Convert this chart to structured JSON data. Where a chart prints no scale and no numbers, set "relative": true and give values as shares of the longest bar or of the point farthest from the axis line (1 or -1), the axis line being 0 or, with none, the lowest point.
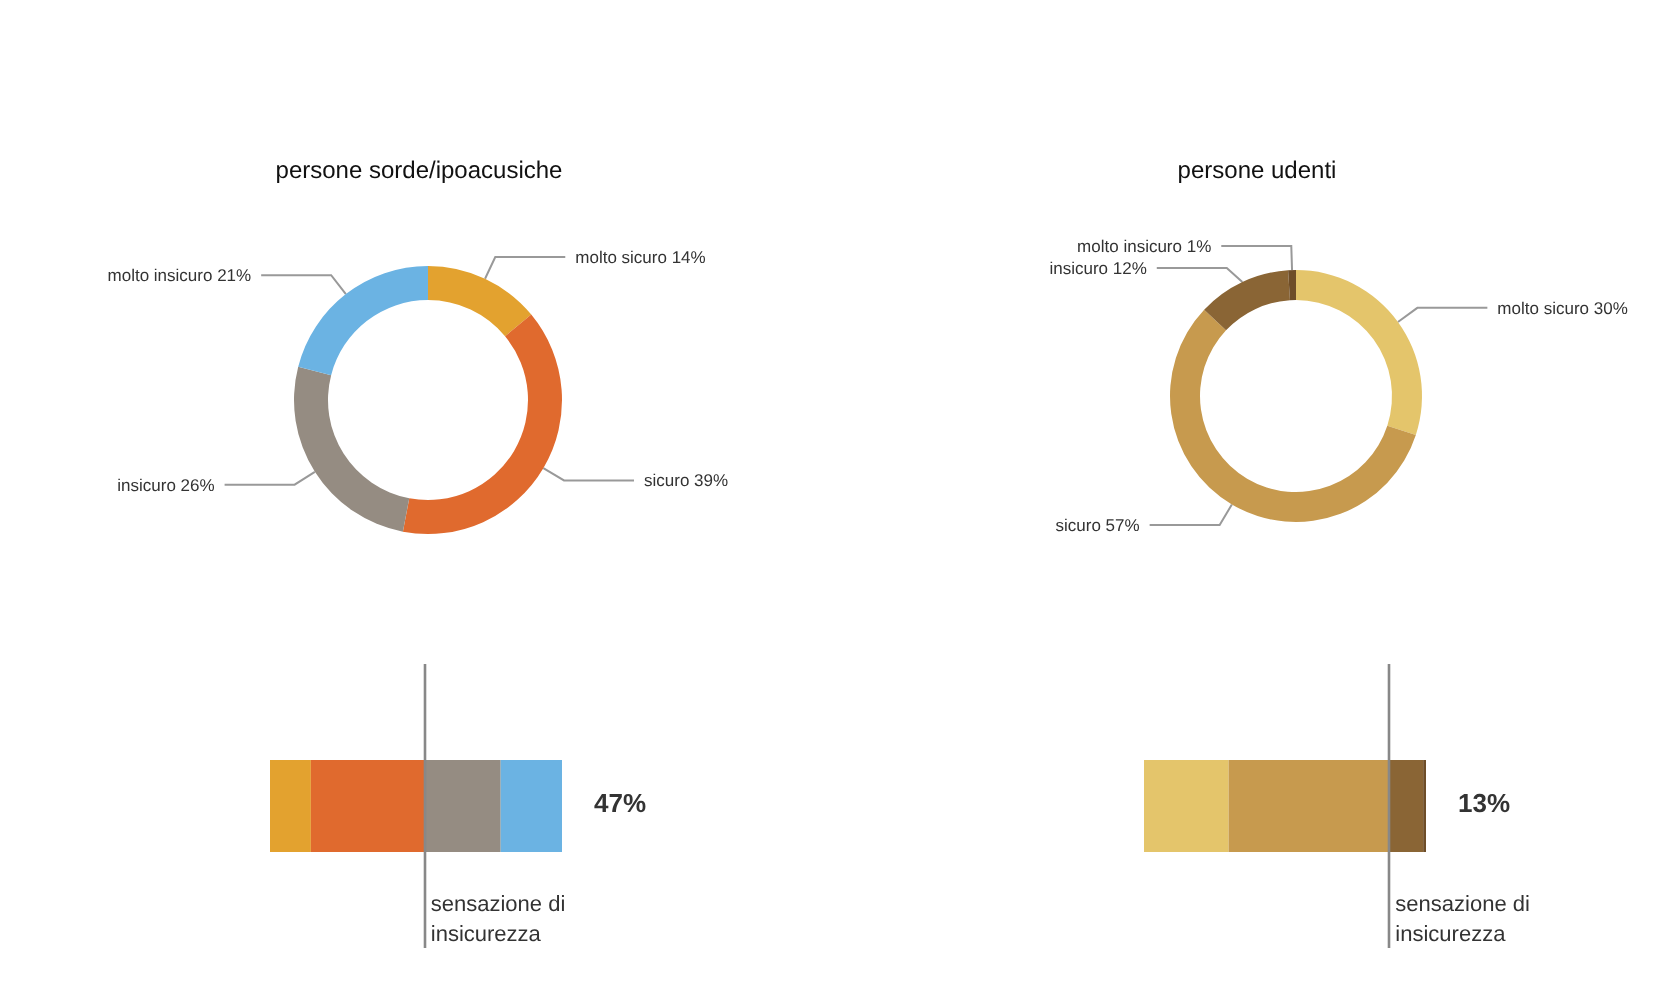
{
  "chart_data": [
    {
      "type": "donut",
      "title": "persone sorde/ipoacusiche",
      "categories": [
        "molto sicuro",
        "sicuro",
        "insicuro",
        "molto insicuro"
      ],
      "values": [
        14,
        39,
        26,
        21
      ],
      "value_labels": [
        "14%",
        "39%",
        "26%",
        "21%"
      ],
      "colors": [
        "#e3a22f",
        "#e06a2e",
        "#958c82",
        "#6bb3e3"
      ]
    },
    {
      "type": "donut",
      "title": "persone udenti",
      "categories": [
        "molto sicuro",
        "sicuro",
        "insicuro",
        "molto insicuro"
      ],
      "values": [
        30,
        57,
        12,
        1
      ],
      "value_labels": [
        "30%",
        "57%",
        "12%",
        "1%"
      ],
      "colors": [
        "#e4c56b",
        "#c79a4e",
        "#8a6535",
        "#6e4d28"
      ]
    },
    {
      "type": "bar",
      "orientation": "horizontal",
      "stacked": true,
      "relative": true,
      "categories": [
        null
      ],
      "series": [
        {
          "color": "#e3a22f",
          "values": [
            0.14
          ]
        },
        {
          "color": "#e06a2e",
          "values": [
            0.39
          ]
        },
        {
          "color": "#958c82",
          "values": [
            0.26
          ]
        },
        {
          "color": "#6bb3e3",
          "values": [
            0.21
          ]
        }
      ],
      "ref_lines": [
        {
          "axis": "x",
          "value": 0.53,
          "label": "sensazione di insicurezza",
          "color": "#888888"
        }
      ],
      "annotations": [
        "47%"
      ]
    },
    {
      "type": "bar",
      "orientation": "horizontal",
      "stacked": true,
      "relative": true,
      "categories": [
        null
      ],
      "series": [
        {
          "color": "#e4c56b",
          "values": [
            0.3
          ]
        },
        {
          "color": "#c79a4e",
          "values": [
            0.57
          ]
        },
        {
          "color": "#8a6535",
          "values": [
            0.12
          ]
        },
        {
          "color": "#6e4d28",
          "values": [
            0.01
          ]
        }
      ],
      "ref_lines": [
        {
          "axis": "x",
          "value": 0.87,
          "label": "sensazione di insicurezza",
          "color": "#888888"
        }
      ],
      "annotations": [
        "13%"
      ]
    }
  ]
}
